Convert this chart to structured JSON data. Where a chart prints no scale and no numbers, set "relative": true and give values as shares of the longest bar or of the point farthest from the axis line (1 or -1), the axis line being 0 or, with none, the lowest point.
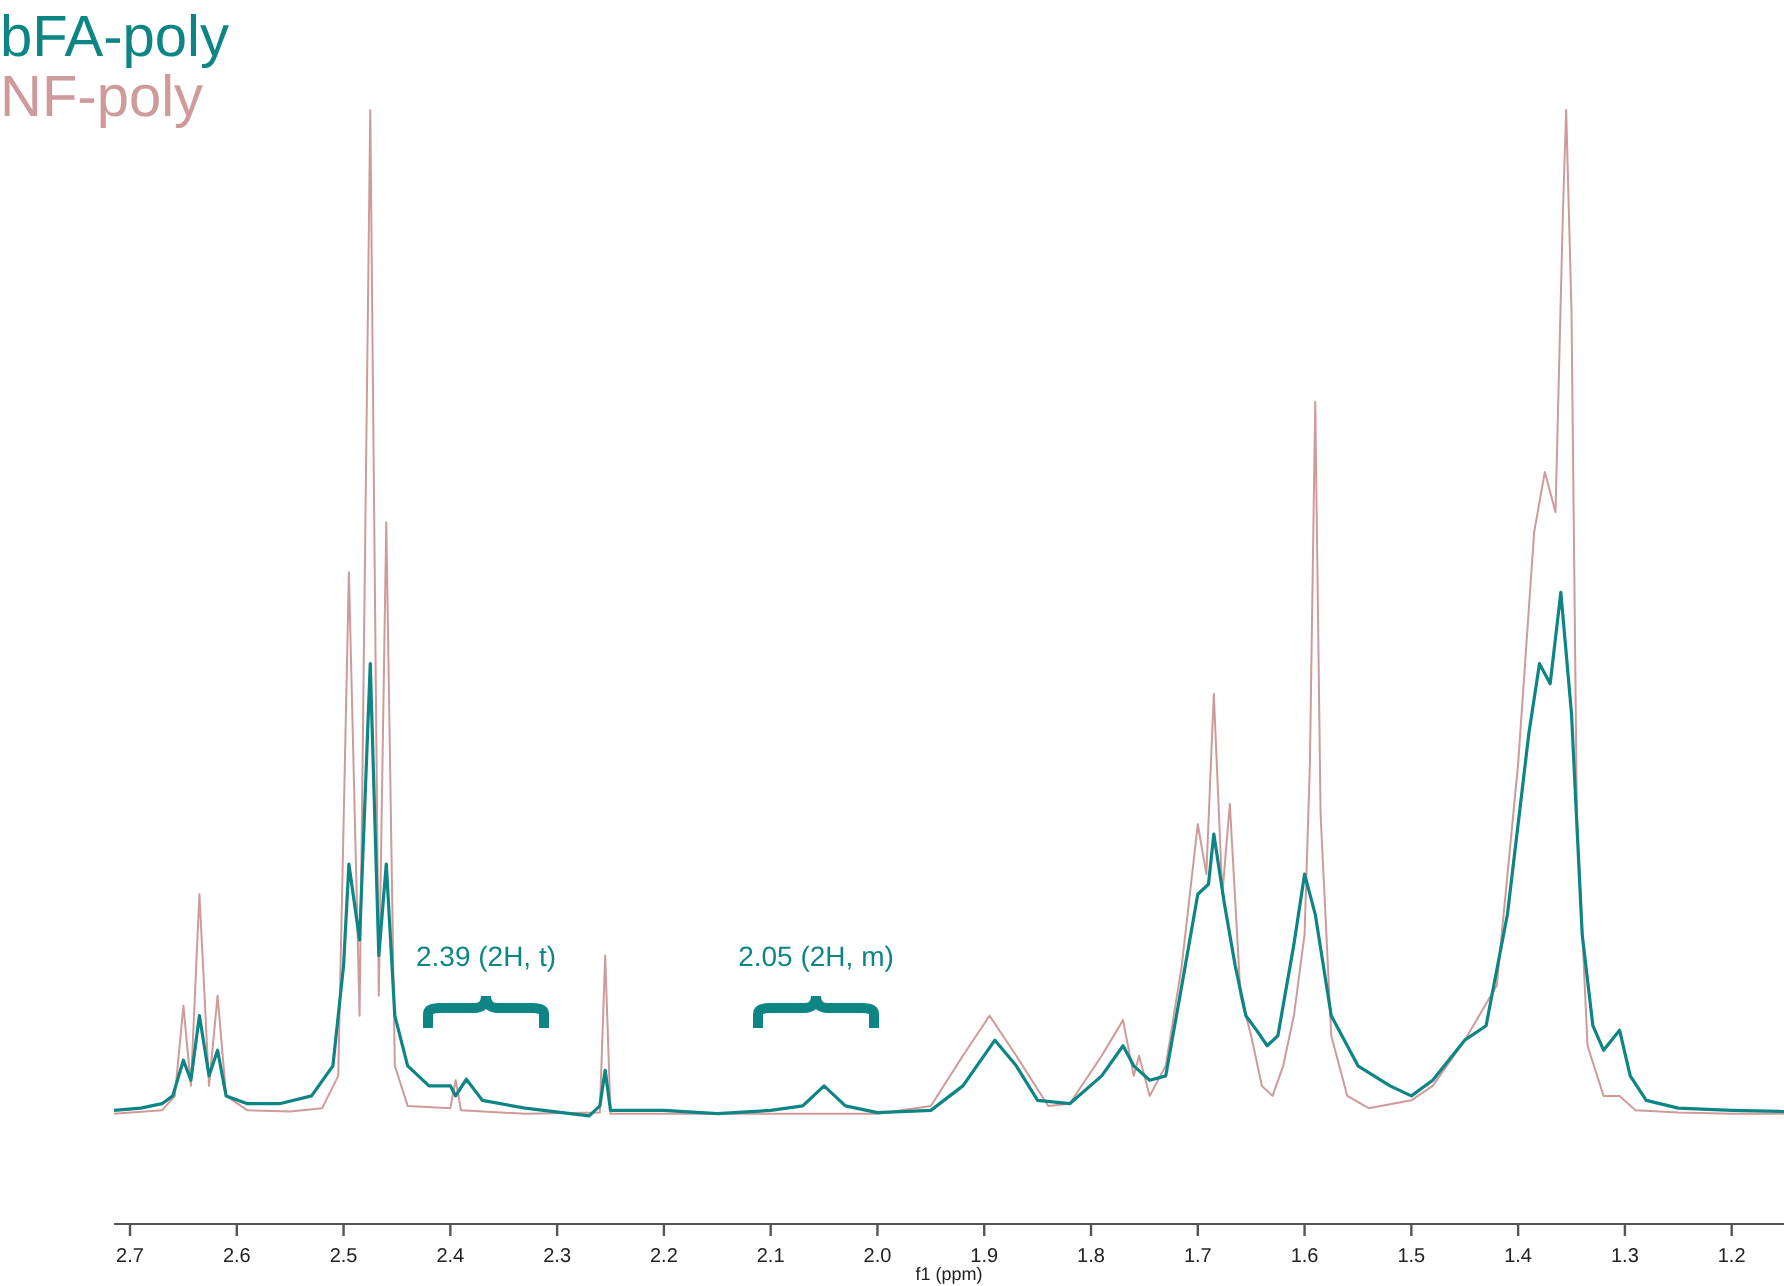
{
  "chart_data": {
    "type": "line",
    "relative": true,
    "xlabel": "f1 (ppm)",
    "xlim": [
      2.715,
      1.151
    ],
    "xticks": [
      2.7,
      2.6,
      2.5,
      2.4,
      2.3,
      2.2,
      2.1,
      {
        "value": 2,
        "label": "2.0"
      },
      1.9,
      1.8,
      1.7,
      1.6,
      1.5,
      1.4,
      1.3,
      1.2
    ],
    "legend": "top left",
    "grid": false,
    "marker": "none",
    "line_style": "solid",
    "annotations": [
      "2.39 (2H, t)",
      "2.05 (2H, m)"
    ],
    "series": [
      {
        "name": "NF-poly",
        "color": "#cf9a9a",
        "x": [
          2.715,
          2.67,
          2.658,
          2.65,
          2.643,
          2.635,
          2.626,
          2.618,
          2.61,
          2.59,
          2.55,
          2.52,
          2.505,
          2.495,
          2.485,
          2.475,
          2.467,
          2.46,
          2.452,
          2.44,
          2.4,
          2.395,
          2.39,
          2.33,
          2.26,
          2.255,
          2.25,
          2.2,
          2.1,
          2.0,
          1.95,
          1.92,
          1.895,
          1.87,
          1.84,
          1.82,
          1.79,
          1.77,
          1.76,
          1.755,
          1.745,
          1.73,
          1.715,
          1.7,
          1.692,
          1.685,
          1.677,
          1.67,
          1.66,
          1.65,
          1.64,
          1.63,
          1.62,
          1.61,
          1.6,
          1.595,
          1.59,
          1.585,
          1.575,
          1.56,
          1.54,
          1.5,
          1.48,
          1.45,
          1.42,
          1.4,
          1.385,
          1.375,
          1.365,
          1.358,
          1.355,
          1.35,
          1.345,
          1.335,
          1.32,
          1.305,
          1.29,
          1.25,
          1.2,
          1.151
        ],
        "values": [
          0.099,
          0.102,
          0.115,
          0.196,
          0.124,
          0.296,
          0.124,
          0.205,
          0.115,
          0.102,
          0.101,
          0.104,
          0.133,
          0.585,
          0.187,
          1,
          0.205,
          0.63,
          0.142,
          0.106,
          0.104,
          0.129,
          0.102,
          0.099,
          0.1,
          0.241,
          0.099,
          0.099,
          0.099,
          0.099,
          0.106,
          0.151,
          0.187,
          0.151,
          0.106,
          0.108,
          0.151,
          0.183,
          0.133,
          0.151,
          0.115,
          0.142,
          0.232,
          0.359,
          0.314,
          0.476,
          0.296,
          0.377,
          0.205,
          0.169,
          0.124,
          0.115,
          0.142,
          0.187,
          0.26,
          0.413,
          0.738,
          0.368,
          0.169,
          0.115,
          0.104,
          0.111,
          0.124,
          0.165,
          0.214,
          0.413,
          0.621,
          0.675,
          0.639,
          0.91,
          1,
          0.819,
          0.368,
          0.16,
          0.115,
          0.115,
          0.102,
          0.1,
          0.099,
          0.099
        ]
      },
      {
        "name": "bFA-poly",
        "color": "#0e8585",
        "x": [
          2.715,
          2.69,
          2.67,
          2.66,
          2.65,
          2.643,
          2.635,
          2.626,
          2.618,
          2.61,
          2.59,
          2.56,
          2.53,
          2.51,
          2.5,
          2.495,
          2.485,
          2.475,
          2.467,
          2.46,
          2.452,
          2.44,
          2.42,
          2.4,
          2.395,
          2.385,
          2.37,
          2.33,
          2.27,
          2.26,
          2.255,
          2.25,
          2.2,
          2.15,
          2.1,
          2.07,
          2.05,
          2.03,
          2.0,
          1.95,
          1.92,
          1.89,
          1.87,
          1.85,
          1.82,
          1.79,
          1.77,
          1.76,
          1.745,
          1.73,
          1.715,
          1.7,
          1.69,
          1.685,
          1.675,
          1.665,
          1.655,
          1.645,
          1.635,
          1.625,
          1.61,
          1.6,
          1.59,
          1.575,
          1.55,
          1.52,
          1.5,
          1.48,
          1.45,
          1.43,
          1.41,
          1.39,
          1.38,
          1.37,
          1.36,
          1.35,
          1.34,
          1.33,
          1.32,
          1.305,
          1.295,
          1.28,
          1.25,
          1.2,
          1.151
        ],
        "values": [
          0.102,
          0.104,
          0.108,
          0.115,
          0.147,
          0.129,
          0.187,
          0.133,
          0.156,
          0.115,
          0.108,
          0.108,
          0.115,
          0.142,
          0.232,
          0.323,
          0.255,
          0.503,
          0.241,
          0.323,
          0.187,
          0.142,
          0.124,
          0.124,
          0.115,
          0.13,
          0.111,
          0.104,
          0.097,
          0.106,
          0.138,
          0.102,
          0.102,
          0.099,
          0.102,
          0.106,
          0.124,
          0.106,
          0.1,
          0.102,
          0.124,
          0.165,
          0.142,
          0.111,
          0.108,
          0.133,
          0.16,
          0.142,
          0.129,
          0.133,
          0.214,
          0.296,
          0.305,
          0.35,
          0.287,
          0.232,
          0.187,
          0.174,
          0.16,
          0.169,
          0.251,
          0.314,
          0.278,
          0.187,
          0.142,
          0.124,
          0.115,
          0.129,
          0.165,
          0.178,
          0.278,
          0.44,
          0.503,
          0.485,
          0.567,
          0.458,
          0.26,
          0.178,
          0.156,
          0.174,
          0.133,
          0.111,
          0.104,
          0.102,
          0.101
        ]
      }
    ]
  }
}
